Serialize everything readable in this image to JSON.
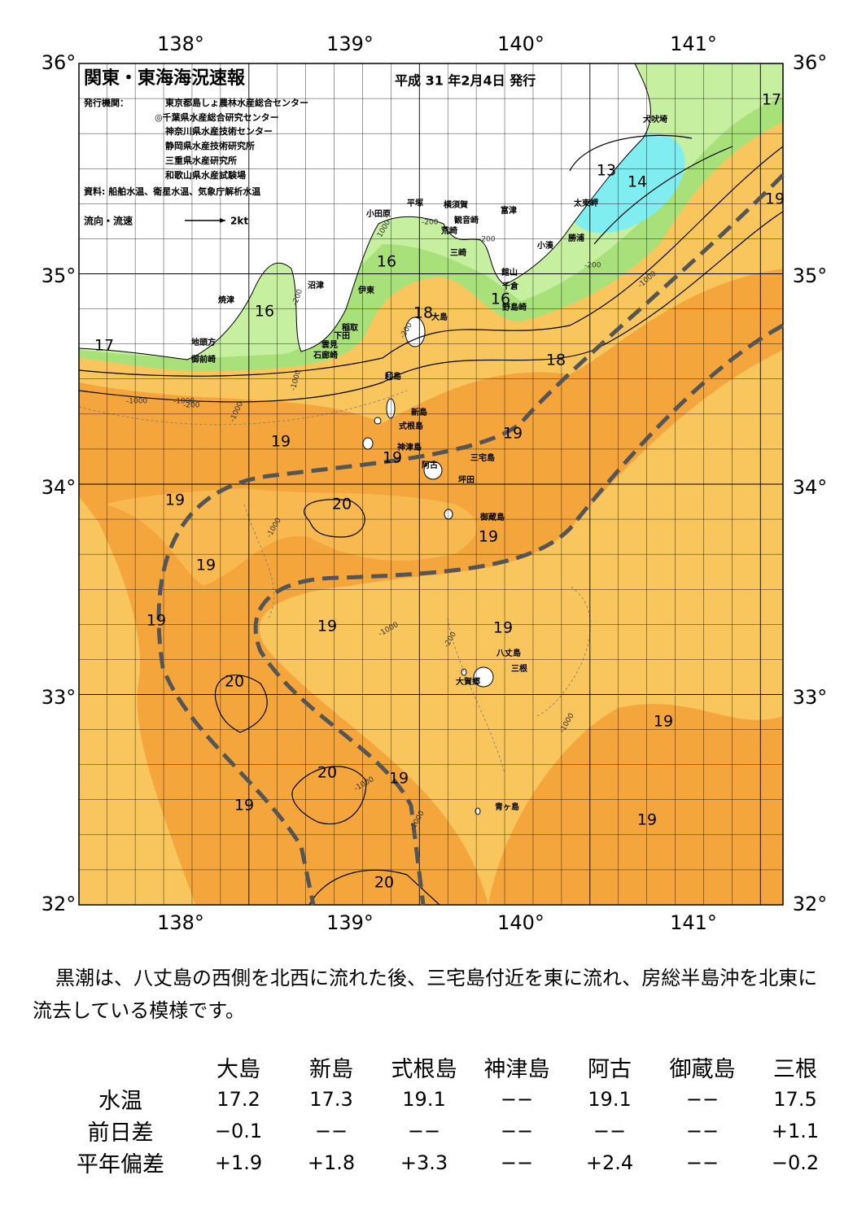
{
  "header": {
    "title": "関東・東海海況速報",
    "date": "平成 31 年2月4日 発行",
    "issuer_label": "発行機関：",
    "issuers": [
      "東京都島しょ農林水産総合センター",
      "◎千葉県水産総合研究センター",
      "神奈川県水産技術センター",
      "静岡県水産技術研究所",
      "三重県水産研究所",
      "和歌山県水産試験場"
    ],
    "source": "資料: 船舶水温、衛星水温、気象庁解析水温",
    "flow_label": "流向・流速",
    "flow_scale": "2kt"
  },
  "axes": {
    "lon_labels": [
      "138°",
      "139°",
      "140°",
      "141°"
    ],
    "lat_labels": [
      "36°",
      "35°",
      "34°",
      "33°",
      "32°"
    ]
  },
  "places": [
    "犬吠埼",
    "太東岬",
    "勝浦",
    "小湊",
    "富津",
    "横須賀",
    "観音崎",
    "荒崎",
    "平塚",
    "小田原",
    "三崎",
    "館山",
    "千倉",
    "野島崎",
    "沼津",
    "伊東",
    "焼津",
    "稲取",
    "下田",
    "雲見",
    "石廊崎",
    "地頭方",
    "御前崎",
    "大島",
    "利島",
    "新島",
    "式根島",
    "神津島",
    "三宅島",
    "阿古",
    "坪田",
    "御蔵島",
    "八丈島",
    "三根",
    "大賀郷",
    "青ヶ島"
  ],
  "contour_labels": [
    "17",
    "13",
    "14",
    "19",
    "16",
    "16",
    "17",
    "18",
    "16",
    "18",
    "19",
    "19",
    "19",
    "20",
    "19",
    "19",
    "19",
    "19",
    "19",
    "19",
    "20",
    "19",
    "20",
    "19",
    "19",
    "19",
    "20"
  ],
  "depth_labels": [
    "-200",
    "1000",
    "-200",
    "-1000",
    "-200",
    "-200",
    "-1000",
    "-1000",
    "-200",
    "-1000",
    "-200",
    "-1000",
    "-1000",
    "-1000",
    "-200",
    "-1000",
    "-1000",
    "-1000"
  ],
  "description": "黒潮は、八丈島の西側を北西に流れた後、三宅島付近を東に流れ、房総半島沖を北東に流去している模様です。",
  "table": {
    "header": [
      "大島",
      "新島",
      "式根島",
      "神津島",
      "阿古",
      "御蔵島",
      "三根"
    ],
    "rows": [
      [
        "水温",
        "17.2",
        "17.3",
        "19.1",
        "−−",
        "19.1",
        "−−",
        "17.5"
      ],
      [
        "前日差",
        "−0.1",
        "−−",
        "−−",
        "−−",
        "−−",
        "−−",
        "+1.1"
      ],
      [
        "平年偏差",
        "+1.9",
        "+1.8",
        "+3.3",
        "−−",
        "+2.4",
        "−−",
        "−0.2"
      ]
    ]
  }
}
